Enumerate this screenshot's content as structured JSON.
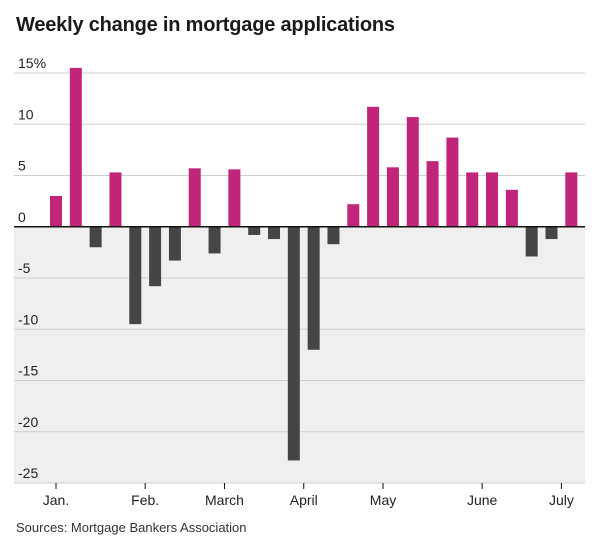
{
  "title": "Weekly change in mortgage applications",
  "source": "Sources: Mortgage Bankers Association",
  "colors": {
    "positive": "#c0257a",
    "negative": "#454545",
    "background": "#f1eef0",
    "grid": "#cfcfcf"
  },
  "chart_data": {
    "type": "bar",
    "title": "Weekly change in mortgage applications",
    "xlabel": "",
    "ylabel": "",
    "ylim": [
      -25,
      15
    ],
    "yticks": [
      15,
      10,
      5,
      0,
      -5,
      -10,
      -15,
      -20,
      -25
    ],
    "ytick_labels": [
      "15%",
      "10",
      "5",
      "0",
      "-5",
      "-10",
      "-15",
      "-20",
      "-25"
    ],
    "month_labels": [
      {
        "label": "Jan.",
        "before_bar": 0
      },
      {
        "label": "Feb.",
        "before_bar": 5
      },
      {
        "label": "March",
        "before_bar": 9
      },
      {
        "label": "April",
        "before_bar": 13
      },
      {
        "label": "May",
        "before_bar": 17
      },
      {
        "label": "June",
        "before_bar": 22
      },
      {
        "label": "July",
        "before_bar": 26
      }
    ],
    "values": [
      3.0,
      15.5,
      -2.0,
      5.3,
      -9.5,
      -5.8,
      -3.3,
      5.7,
      -2.6,
      5.6,
      -0.8,
      -1.2,
      -22.8,
      -12.0,
      -1.7,
      2.2,
      11.7,
      5.8,
      10.7,
      6.4,
      8.7,
      5.3,
      5.3,
      3.6,
      -2.9,
      -1.2,
      5.3
    ]
  }
}
